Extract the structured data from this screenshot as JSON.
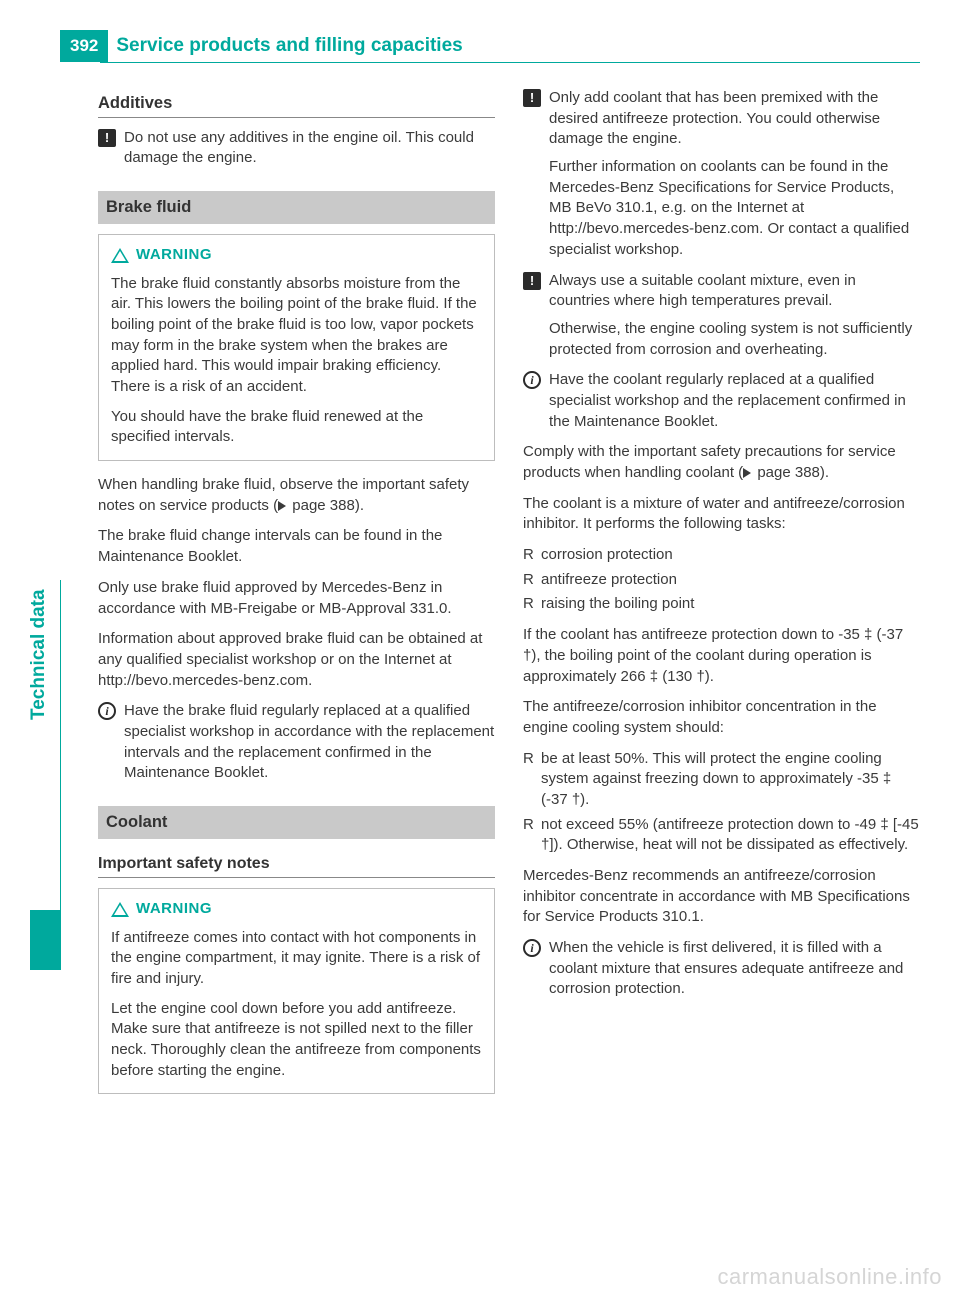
{
  "header": {
    "page_number": "392",
    "title": "Service products and filling capacities"
  },
  "side_tab": "Technical data",
  "watermark": "carmanualsonline.info",
  "colors": {
    "accent": "#00a99d",
    "text": "#3a3a3a",
    "box_border": "#bdbdbd",
    "bar_bg": "#c9c9c9"
  },
  "left": {
    "additives": {
      "heading": "Additives",
      "note": "Do not use any additives in the engine oil. This could damage the engine."
    },
    "brake": {
      "heading": "Brake fluid",
      "warning_label": "WARNING",
      "warning_p1": "The brake fluid constantly absorbs moisture from the air. This lowers the boiling point of the brake fluid. If the boiling point of the brake fluid is too low, vapor pockets may form in the brake system when the brakes are applied hard. This would impair braking efficiency. There is a risk of an accident.",
      "warning_p2": "You should have the brake fluid renewed at the specified intervals.",
      "p1a": "When handling brake fluid, observe the important safety notes on service products (",
      "p1b": " page 388).",
      "p2": "The brake fluid change intervals can be found in the Maintenance Booklet.",
      "p3": "Only use brake fluid approved by Mercedes-Benz in accordance with MB-Freigabe or MB-Approval 331.0.",
      "p4": "Information about approved brake fluid can be obtained at any qualified specialist workshop or on the Internet at http://bevo.mercedes-benz.com.",
      "info": "Have the brake fluid regularly replaced at a qualified specialist workshop in accordance with the replacement intervals and the replacement confirmed in the Maintenance Booklet."
    },
    "coolant": {
      "heading": "Coolant",
      "sub": "Important safety notes",
      "warning_label": "WARNING",
      "warning_p1": "If antifreeze comes into contact with hot components in the engine compartment, it may ignite. There is a risk of fire and injury.",
      "warning_p2": "Let the engine cool down before you add antifreeze. Make sure that antifreeze is not spilled next to the filler neck. Thoroughly clean the antifreeze from components before starting the engine."
    }
  },
  "right": {
    "note1_p1": "Only add coolant that has been premixed with the desired antifreeze protection. You could otherwise damage the engine.",
    "note1_p2": "Further information on coolants can be found in the Mercedes-Benz Specifications for Service Products, MB BeVo 310.1, e.g. on the Internet at http://bevo.mercedes-benz.com. Or contact a qualified specialist workshop.",
    "note2_p1": "Always use a suitable coolant mixture, even in countries where high temperatures prevail.",
    "note2_p2": "Otherwise, the engine cooling system is not sufficiently protected from corrosion and overheating.",
    "info1": "Have the coolant regularly replaced at a qualified specialist workshop and the replacement confirmed in the Maintenance Booklet.",
    "p1a": "Comply with the important safety precautions for service products when handling coolant (",
    "p1b": " page 388).",
    "p2": "The coolant is a mixture of water and antifreeze/corrosion inhibitor. It performs the following tasks:",
    "bullets1": [
      "corrosion protection",
      "antifreeze protection",
      "raising the boiling point"
    ],
    "p3": "If the coolant has antifreeze protection down to -35 ‡ (-37 †), the boiling point of the coolant during operation is approximately 266 ‡ (130 †).",
    "p4": "The antifreeze/corrosion inhibitor concentration in the engine cooling system should:",
    "bullets2": [
      "be at least 50%. This will protect the engine cooling system against freezing down to approximately -35 ‡ (-37 †).",
      "not exceed 55% (antifreeze protection down to -49 ‡ [-45 †]). Otherwise, heat will not be dissipated as effectively."
    ],
    "p5": "Mercedes-Benz recommends an antifreeze/corrosion inhibitor concentrate in accordance with MB Specifications for Service Products 310.1.",
    "info2": "When the vehicle is first delivered, it is filled with a coolant mixture that ensures adequate antifreeze and corrosion protection."
  }
}
